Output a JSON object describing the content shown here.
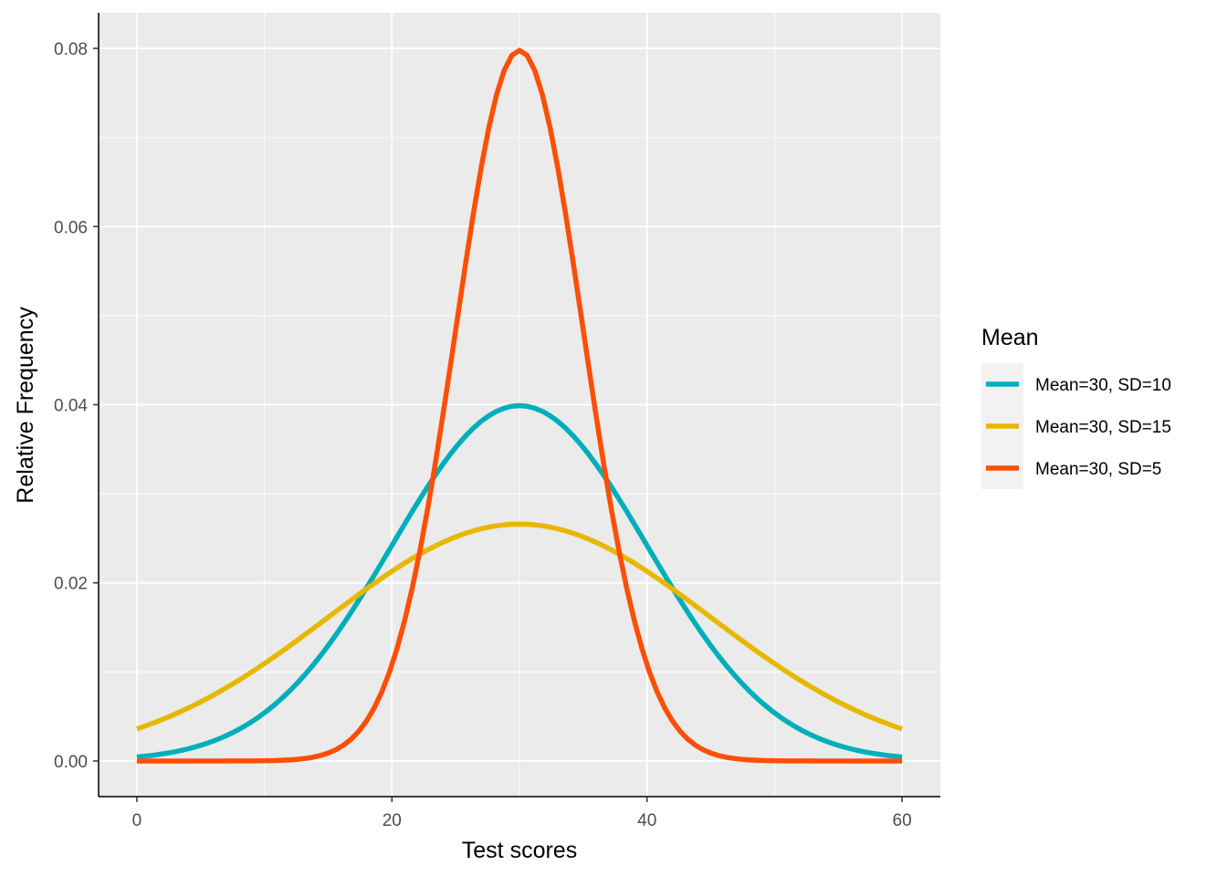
{
  "chart_data": {
    "type": "line",
    "title": "",
    "xlabel": "Test scores",
    "ylabel": "Relative Frequency",
    "xlim": [
      -3,
      63
    ],
    "ylim": [
      -0.004,
      0.084
    ],
    "x_ticks": [
      0,
      20,
      40,
      60
    ],
    "x_tick_labels": [
      "0",
      "20",
      "40",
      "60"
    ],
    "y_ticks": [
      0,
      0.02,
      0.04,
      0.06,
      0.08
    ],
    "y_tick_labels": [
      "0.00",
      "0.02",
      "0.04",
      "0.06",
      "0.08"
    ],
    "x_range": [
      0,
      60
    ],
    "grid": true,
    "legend": {
      "title": "Mean",
      "placement": "right"
    },
    "series": [
      {
        "name": "Mean=30, SD=10",
        "mean": 30,
        "sd": 10,
        "color": "#00AFBB",
        "x": [
          0,
          5,
          10,
          15,
          20,
          25,
          30,
          35,
          40,
          45,
          50,
          55,
          60
        ],
        "y": [
          0.0004,
          0.0018,
          0.0054,
          0.013,
          0.0242,
          0.0352,
          0.0399,
          0.0352,
          0.0242,
          0.013,
          0.0054,
          0.0018,
          0.0004
        ]
      },
      {
        "name": "Mean=30, SD=15",
        "mean": 30,
        "sd": 15,
        "color": "#E7B800",
        "x": [
          0,
          5,
          10,
          15,
          20,
          25,
          30,
          35,
          40,
          45,
          50,
          55,
          60
        ],
        "y": [
          0.0036,
          0.0066,
          0.0109,
          0.0161,
          0.0213,
          0.0252,
          0.0266,
          0.0252,
          0.0213,
          0.0161,
          0.0109,
          0.0066,
          0.0036
        ]
      },
      {
        "name": "Mean=30, SD=5",
        "mean": 30,
        "sd": 5,
        "color": "#FC4E07",
        "x": [
          0,
          5,
          10,
          15,
          20,
          25,
          30,
          35,
          40,
          45,
          50,
          55,
          60
        ],
        "y": [
          0.0,
          0.0,
          0.0,
          0.0009,
          0.0108,
          0.0484,
          0.0798,
          0.0484,
          0.0108,
          0.0009,
          0.0,
          0.0,
          0.0
        ]
      }
    ]
  },
  "colors": {
    "panel_background": "#EBEBEB",
    "grid": "#FFFFFF",
    "axis_line": "#000000"
  }
}
